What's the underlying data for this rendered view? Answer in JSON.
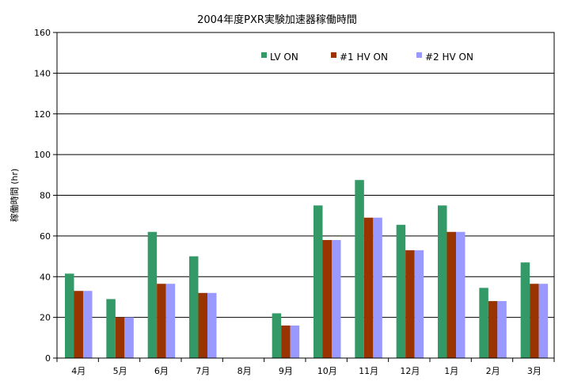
{
  "chart_data": {
    "type": "bar",
    "title": "2004年度PXR実験加速器稼働時間",
    "ylabel": "稼働時間 (hr)",
    "xlabel": "",
    "ylim": [
      0,
      160
    ],
    "yticks": [
      0,
      20,
      40,
      60,
      80,
      100,
      120,
      140,
      160
    ],
    "grid": true,
    "legend_position": "top-right",
    "categories": [
      "4月",
      "5月",
      "6月",
      "7月",
      "8月",
      "9月",
      "10月",
      "11月",
      "12月",
      "1月",
      "2月",
      "3月"
    ],
    "series": [
      {
        "name": "LV ON",
        "color": "#339966",
        "values": [
          41.5,
          29,
          62,
          50,
          0,
          22,
          75,
          87.5,
          65.5,
          75,
          34.5,
          47
        ]
      },
      {
        "name": "#1  HV ON",
        "color": "#993300",
        "values": [
          33,
          20,
          36.5,
          32,
          0,
          16,
          58,
          69,
          53,
          62,
          28,
          36.5
        ]
      },
      {
        "name": "#2  HV ON",
        "color": "#9999ff",
        "values": [
          33,
          20,
          36.5,
          32,
          0,
          16,
          58,
          69,
          53,
          62,
          28,
          36.5
        ]
      }
    ]
  }
}
